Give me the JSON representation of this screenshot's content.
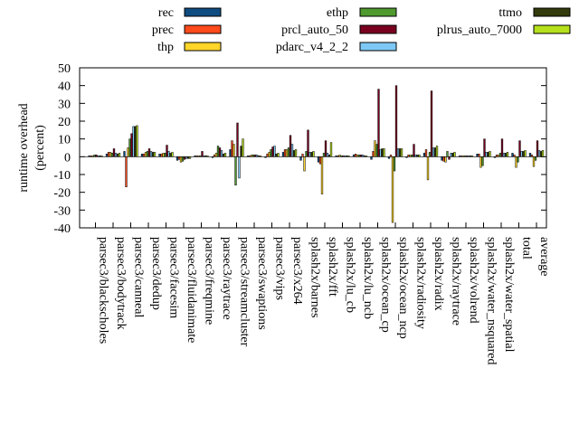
{
  "chart_data": {
    "type": "bar",
    "title": "",
    "xlabel": "",
    "ylabel": "runtime overhead\n(percent)",
    "ylim": [
      -40,
      50
    ],
    "yticks": [
      -40,
      -30,
      -20,
      -10,
      0,
      10,
      20,
      30,
      40,
      50
    ],
    "grid": false,
    "legend_position": "top",
    "categories": [
      "parsec3/blackscholes",
      "parsec3/bodytrack",
      "parsec3/canneal",
      "parsec3/dedup",
      "parsec3/facesim",
      "parsec3/fluidanimate",
      "parsec3/freqmine",
      "parsec3/raytrace",
      "parsec3/streamcluster",
      "parsec3/swaptions",
      "parsec3/vips",
      "parsec3/x264",
      "splash2x/barnes",
      "splash2x/fft",
      "splash2x/lu_cb",
      "splash2x/lu_ncb",
      "splash2x/ocean_cp",
      "splash2x/ocean_ncp",
      "splash2x/radiosity",
      "splash2x/radix",
      "splash2x/raytrace",
      "splash2x/volrend",
      "splash2x/water_nsquared",
      "splash2x/water_spatial",
      "total",
      "average"
    ],
    "series": [
      {
        "name": "rec",
        "color": "#0f4c81",
        "values": [
          0.5,
          1.5,
          3.0,
          1.5,
          1.5,
          -2.0,
          0.5,
          -0.5,
          4.0,
          0.5,
          -0.5,
          2.5,
          -2.0,
          -3.0,
          0.5,
          1.0,
          -1.5,
          -1.0,
          -0.5,
          2.0,
          -2.0,
          0.5,
          1.5,
          -0.5,
          2.0,
          2.0
        ]
      },
      {
        "name": "prec",
        "color": "#ff4a1c",
        "values": [
          0.5,
          2.5,
          -17.0,
          1.5,
          1.5,
          -1.5,
          0.5,
          1.0,
          9.0,
          0.5,
          1.5,
          4.0,
          1.5,
          -4.0,
          0.5,
          1.5,
          3.0,
          1.0,
          1.0,
          4.0,
          -2.5,
          0.5,
          1.5,
          1.0,
          1.0,
          1.0
        ]
      },
      {
        "name": "thp",
        "color": "#ffd52a",
        "values": [
          0.5,
          2.5,
          5.0,
          2.5,
          2.0,
          -3.0,
          0.5,
          2.0,
          7.0,
          1.0,
          2.5,
          4.0,
          -8.0,
          -21.0,
          1.0,
          1.0,
          9.0,
          -37.0,
          1.0,
          -13.0,
          -3.0,
          0.5,
          -6.0,
          1.0,
          -6.0,
          -5.5
        ]
      },
      {
        "name": "ethp",
        "color": "#4f9a2f",
        "values": [
          1.0,
          2.0,
          10.0,
          3.0,
          2.0,
          -2.5,
          0.5,
          6.0,
          -16.0,
          1.0,
          4.0,
          5.0,
          3.0,
          2.0,
          0.5,
          1.0,
          7.0,
          -8.0,
          1.0,
          2.5,
          3.0,
          0.5,
          -5.0,
          2.0,
          -3.0,
          -2.0
        ]
      },
      {
        "name": "prcl_auto_50",
        "color": "#7a0020",
        "values": [
          1.0,
          4.5,
          13.0,
          4.5,
          6.5,
          -1.5,
          3.0,
          5.0,
          19.0,
          1.0,
          5.5,
          12.0,
          15.0,
          9.0,
          0.5,
          1.0,
          38.0,
          40.0,
          7.0,
          37.0,
          -1.5,
          0.5,
          10.0,
          10.0,
          9.0,
          9.0
        ]
      },
      {
        "name": "pdarc_v4_2_2",
        "color": "#7ec8f5",
        "values": [
          0.5,
          2.0,
          17.0,
          3.0,
          3.0,
          -1.0,
          0.5,
          3.5,
          -12.0,
          1.0,
          6.0,
          7.0,
          2.5,
          2.0,
          0.5,
          1.0,
          4.0,
          4.5,
          1.0,
          5.0,
          2.0,
          0.5,
          2.5,
          2.0,
          3.0,
          3.5
        ]
      },
      {
        "name": "ttmo",
        "color": "#333a0c",
        "values": [
          0.5,
          1.5,
          17.0,
          2.5,
          2.0,
          -1.0,
          0.5,
          1.5,
          6.0,
          0.5,
          1.5,
          3.5,
          2.5,
          1.0,
          0.5,
          0.5,
          4.5,
          4.5,
          1.0,
          5.0,
          2.0,
          0.5,
          2.5,
          2.0,
          3.0,
          3.0
        ]
      },
      {
        "name": "plrus_auto_7000",
        "color": "#b5e01b",
        "values": [
          0.5,
          2.0,
          17.5,
          2.5,
          2.5,
          -1.0,
          0.5,
          2.0,
          10.0,
          0.5,
          2.0,
          4.0,
          3.0,
          8.0,
          0.5,
          0.5,
          4.5,
          4.5,
          1.0,
          6.0,
          2.5,
          0.5,
          3.0,
          2.5,
          3.5,
          3.5
        ]
      }
    ]
  }
}
